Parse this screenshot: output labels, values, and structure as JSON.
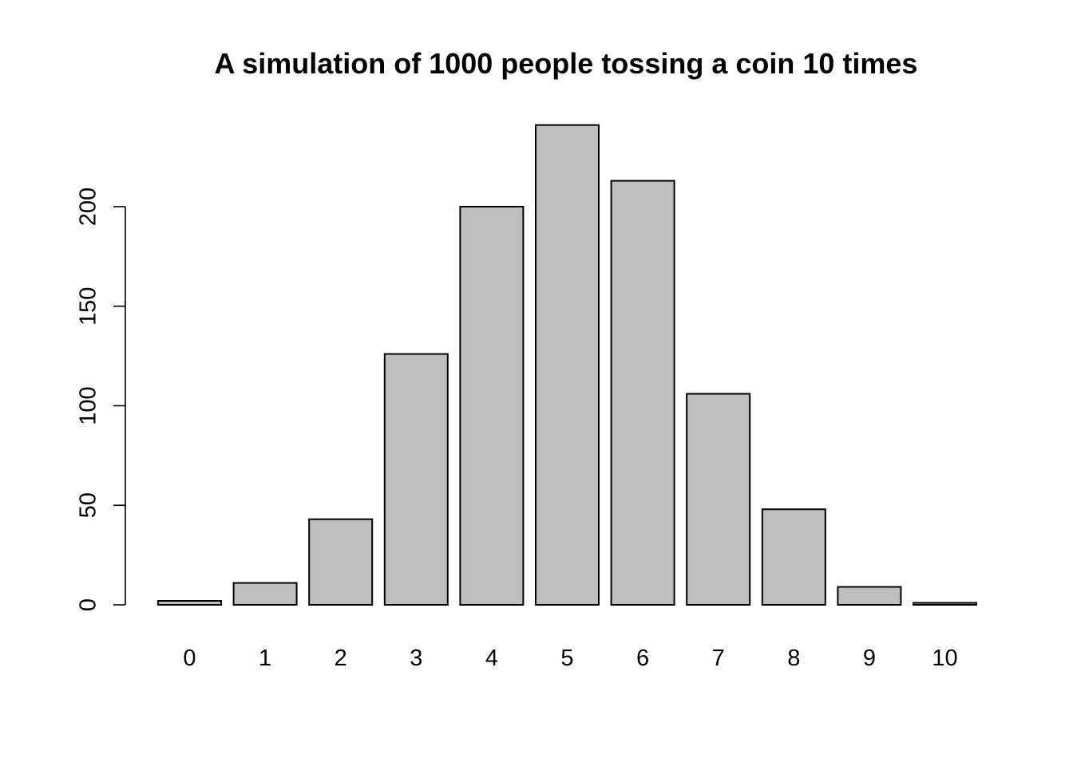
{
  "chart_data": {
    "type": "bar",
    "title": "A simulation of 1000 people tossing a coin 10 times",
    "xlabel": "",
    "ylabel": "",
    "categories": [
      "0",
      "1",
      "2",
      "3",
      "4",
      "5",
      "6",
      "7",
      "8",
      "9",
      "10"
    ],
    "values": [
      2,
      11,
      43,
      126,
      200,
      241,
      213,
      106,
      48,
      9,
      1
    ],
    "ylim": [
      0,
      241
    ],
    "yticks": [
      0,
      50,
      100,
      150,
      200
    ],
    "ytick_labels": [
      "0",
      "50",
      "100",
      "150",
      "200"
    ],
    "grid": false,
    "legend": "none",
    "bar_color": "#bebebe",
    "border_color": "#000000"
  }
}
